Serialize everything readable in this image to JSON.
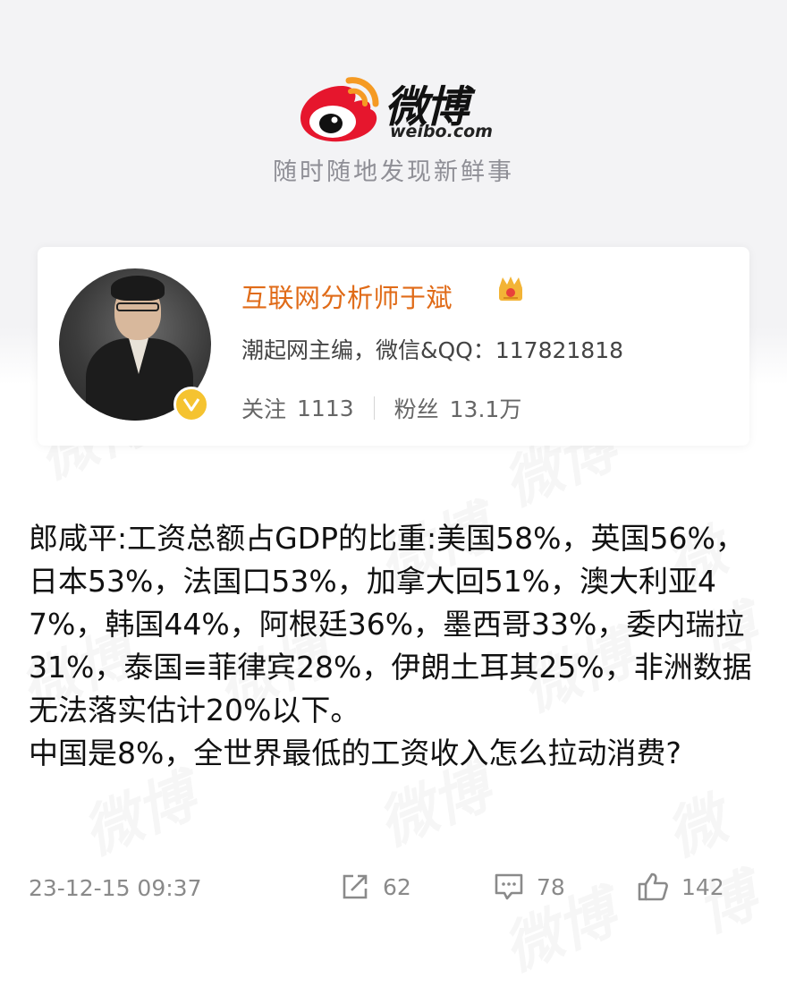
{
  "brand": {
    "name": "微博",
    "domain": "weibo.com",
    "slogan": "随时随地发现新鲜事",
    "logo_icon": "weibo-eye-logo"
  },
  "profile": {
    "name": "互联网分析师于斌",
    "bio": "潮起网主编，微信&QQ：117821818",
    "follow_label": "关注",
    "follow_count": "1113",
    "fans_label": "粉丝",
    "fans_count": "13.1万",
    "verified_icon": "gold-v-badge",
    "member_icon": "crown-icon"
  },
  "post": {
    "text": "郎咸平:工资总额占GDP的比重:美国58%，英国56%，日本53%，法国口53%，加拿大回51%，澳大利亚47%，韩国44%，阿根廷36%，墨西哥33%，委内瑞拉\n31%，泰国≡菲律宾28%，伊朗土耳其25%，非洲数据无法落实估计20%以下。\n中国是8%，全世界最低的工资收入怎么拉动消费?",
    "timestamp": "23-12-15 09:37",
    "reposts": "62",
    "comments": "78",
    "likes": "142"
  },
  "colors": {
    "username": "#e06b18",
    "logo_red": "#e6162d",
    "logo_orange": "#f59a23",
    "badge_gold": "#f5c330"
  }
}
